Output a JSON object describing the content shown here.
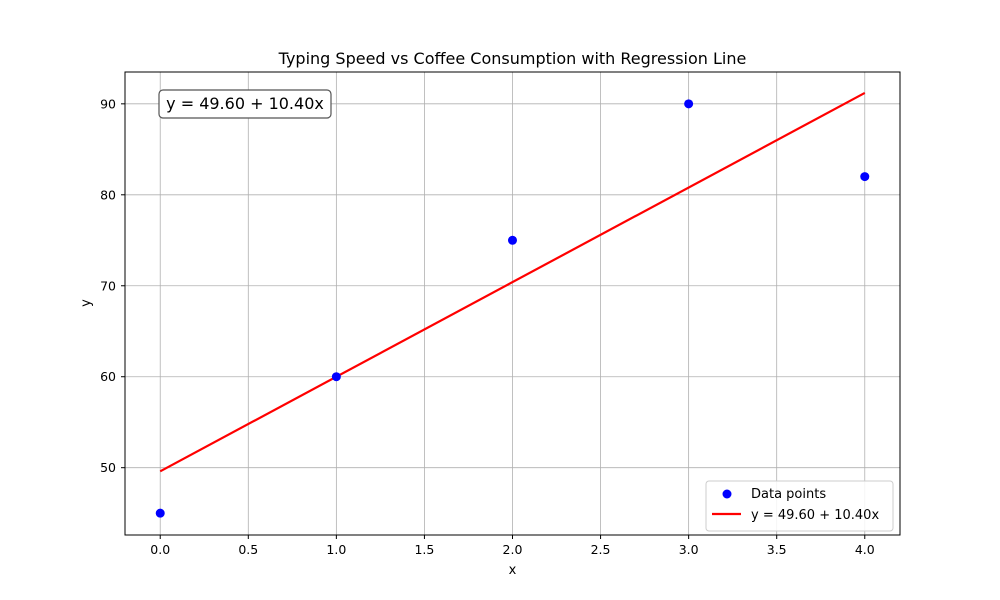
{
  "chart_data": {
    "type": "scatter",
    "title": "Typing Speed vs Coffee Consumption with Regression Line",
    "xlabel": "x",
    "ylabel": "y",
    "xlim": [
      -0.2,
      4.2
    ],
    "ylim": [
      42.6,
      93.5
    ],
    "xticks": [
      0.0,
      0.5,
      1.0,
      1.5,
      2.0,
      2.5,
      3.0,
      3.5,
      4.0
    ],
    "xtick_labels": [
      "0.0",
      "0.5",
      "1.0",
      "1.5",
      "2.0",
      "2.5",
      "3.0",
      "3.5",
      "4.0"
    ],
    "yticks": [
      50,
      60,
      70,
      80,
      90
    ],
    "ytick_labels": [
      "50",
      "60",
      "70",
      "80",
      "90"
    ],
    "grid": true,
    "series": [
      {
        "name": "Data points",
        "kind": "scatter",
        "color": "#0000ff",
        "x": [
          0,
          1,
          2,
          3,
          4
        ],
        "y": [
          45,
          60,
          75,
          90,
          82
        ]
      },
      {
        "name": "y = 49.60 + 10.40x",
        "kind": "line",
        "color": "#ff0000",
        "intercept": 49.6,
        "slope": 10.4,
        "x": [
          0,
          4
        ],
        "y": [
          49.6,
          91.2
        ]
      }
    ],
    "legend": {
      "position": "lower-right",
      "entries": [
        "Data points",
        "y = 49.60 + 10.40x"
      ]
    },
    "annotation": {
      "text": "y = 49.60 + 10.40x",
      "position": "top-left"
    }
  }
}
